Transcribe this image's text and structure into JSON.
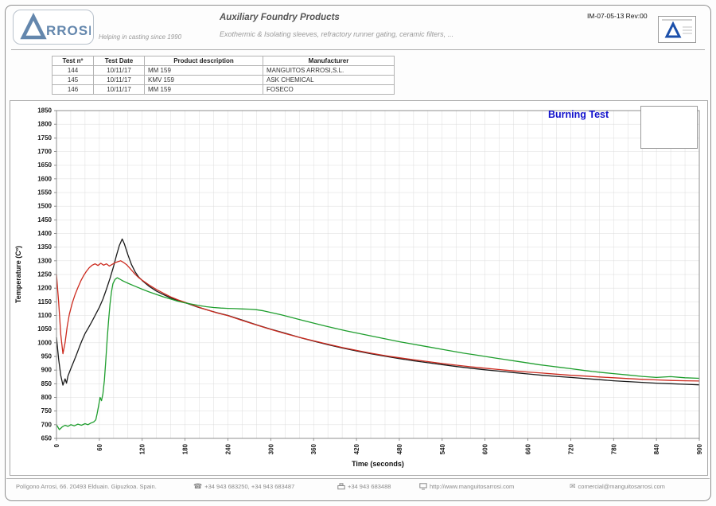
{
  "header": {
    "brand_name": "ARROSI",
    "logo_letters": "RROSI",
    "tagline": "Helping in casting since 1990",
    "title": "Auxiliary Foundry Products",
    "subtitle": "Exothermic & Isolating sleeves, refractory runner gating, ceramic filters, ...",
    "doc_code": "IM-07-05-13 Rev:00"
  },
  "test_table": {
    "headers": [
      "Test nº",
      "Test Date",
      "Product description",
      "Manufacturer"
    ],
    "rows": [
      [
        "144",
        "10/11/17",
        "MM 159",
        "MANGUITOS ARROSI,S.L."
      ],
      [
        "145",
        "10/11/17",
        "KMV 159",
        "ASK CHEMICAL"
      ],
      [
        "146",
        "10/11/17",
        "MM 159",
        "FOSECO"
      ]
    ]
  },
  "chart_data": {
    "type": "line",
    "title": "Burning Test",
    "title_color": "#1212cc",
    "xlabel": "Time (seconds)",
    "ylabel": "Temperature (Cº)",
    "xlim": [
      0,
      900
    ],
    "ylim": [
      650,
      1850
    ],
    "x_tick_step": 60,
    "y_tick_step": 50,
    "x_grid_step": 20,
    "grid": true,
    "legend": {
      "position": "top-right",
      "entries": []
    },
    "series": [
      {
        "name": "black",
        "color": "#1a1a1a",
        "points": [
          [
            0,
            1020
          ],
          [
            3,
            940
          ],
          [
            6,
            880
          ],
          [
            9,
            845
          ],
          [
            12,
            868
          ],
          [
            14,
            852
          ],
          [
            16,
            878
          ],
          [
            20,
            905
          ],
          [
            24,
            930
          ],
          [
            28,
            956
          ],
          [
            32,
            984
          ],
          [
            36,
            1010
          ],
          [
            40,
            1034
          ],
          [
            45,
            1056
          ],
          [
            50,
            1080
          ],
          [
            55,
            1105
          ],
          [
            60,
            1130
          ],
          [
            65,
            1160
          ],
          [
            70,
            1196
          ],
          [
            75,
            1236
          ],
          [
            80,
            1280
          ],
          [
            84,
            1320
          ],
          [
            88,
            1356
          ],
          [
            92,
            1380
          ],
          [
            95,
            1362
          ],
          [
            100,
            1322
          ],
          [
            105,
            1286
          ],
          [
            110,
            1260
          ],
          [
            115,
            1241
          ],
          [
            120,
            1228
          ],
          [
            130,
            1206
          ],
          [
            140,
            1189
          ],
          [
            150,
            1176
          ],
          [
            160,
            1164
          ],
          [
            170,
            1155
          ],
          [
            180,
            1147
          ],
          [
            195,
            1133
          ],
          [
            210,
            1121
          ],
          [
            225,
            1110
          ],
          [
            240,
            1100
          ],
          [
            260,
            1083
          ],
          [
            280,
            1066
          ],
          [
            300,
            1050
          ],
          [
            320,
            1035
          ],
          [
            340,
            1020
          ],
          [
            360,
            1006
          ],
          [
            380,
            993
          ],
          [
            400,
            981
          ],
          [
            420,
            970
          ],
          [
            440,
            960
          ],
          [
            460,
            951
          ],
          [
            480,
            942
          ],
          [
            500,
            934
          ],
          [
            520,
            927
          ],
          [
            540,
            920
          ],
          [
            560,
            913
          ],
          [
            580,
            907
          ],
          [
            600,
            901
          ],
          [
            620,
            896
          ],
          [
            640,
            891
          ],
          [
            660,
            886
          ],
          [
            680,
            881
          ],
          [
            700,
            877
          ],
          [
            720,
            873
          ],
          [
            740,
            869
          ],
          [
            760,
            865
          ],
          [
            780,
            861
          ],
          [
            800,
            858
          ],
          [
            820,
            855
          ],
          [
            840,
            852
          ],
          [
            860,
            850
          ],
          [
            880,
            848
          ],
          [
            900,
            846
          ]
        ]
      },
      {
        "name": "red",
        "color": "#cc2a1e",
        "points": [
          [
            0,
            1250
          ],
          [
            3,
            1150
          ],
          [
            6,
            1030
          ],
          [
            9,
            960
          ],
          [
            12,
            1000
          ],
          [
            15,
            1060
          ],
          [
            18,
            1105
          ],
          [
            22,
            1145
          ],
          [
            26,
            1176
          ],
          [
            30,
            1202
          ],
          [
            34,
            1226
          ],
          [
            38,
            1246
          ],
          [
            42,
            1262
          ],
          [
            46,
            1275
          ],
          [
            50,
            1284
          ],
          [
            54,
            1289
          ],
          [
            58,
            1283
          ],
          [
            62,
            1291
          ],
          [
            66,
            1284
          ],
          [
            70,
            1289
          ],
          [
            74,
            1281
          ],
          [
            78,
            1287
          ],
          [
            82,
            1293
          ],
          [
            86,
            1297
          ],
          [
            90,
            1300
          ],
          [
            94,
            1294
          ],
          [
            98,
            1286
          ],
          [
            102,
            1275
          ],
          [
            106,
            1263
          ],
          [
            110,
            1251
          ],
          [
            115,
            1239
          ],
          [
            120,
            1229
          ],
          [
            130,
            1211
          ],
          [
            140,
            1195
          ],
          [
            150,
            1181
          ],
          [
            160,
            1168
          ],
          [
            170,
            1157
          ],
          [
            180,
            1148
          ],
          [
            195,
            1134
          ],
          [
            210,
            1121
          ],
          [
            225,
            1109
          ],
          [
            240,
            1099
          ],
          [
            260,
            1082
          ],
          [
            280,
            1065
          ],
          [
            300,
            1049
          ],
          [
            320,
            1034
          ],
          [
            340,
            1020
          ],
          [
            360,
            1007
          ],
          [
            380,
            995
          ],
          [
            400,
            983
          ],
          [
            420,
            972
          ],
          [
            440,
            962
          ],
          [
            460,
            953
          ],
          [
            480,
            945
          ],
          [
            500,
            938
          ],
          [
            520,
            931
          ],
          [
            540,
            924
          ],
          [
            560,
            918
          ],
          [
            580,
            912
          ],
          [
            600,
            907
          ],
          [
            620,
            902
          ],
          [
            640,
            897
          ],
          [
            660,
            893
          ],
          [
            680,
            889
          ],
          [
            700,
            885
          ],
          [
            720,
            881
          ],
          [
            740,
            878
          ],
          [
            760,
            875
          ],
          [
            780,
            872
          ],
          [
            800,
            869
          ],
          [
            820,
            866
          ],
          [
            840,
            864
          ],
          [
            860,
            862
          ],
          [
            880,
            861
          ],
          [
            900,
            860
          ]
        ]
      },
      {
        "name": "green",
        "color": "#1f9e2e",
        "points": [
          [
            0,
            700
          ],
          [
            4,
            682
          ],
          [
            8,
            692
          ],
          [
            12,
            698
          ],
          [
            16,
            694
          ],
          [
            20,
            700
          ],
          [
            25,
            696
          ],
          [
            30,
            702
          ],
          [
            35,
            698
          ],
          [
            40,
            704
          ],
          [
            44,
            700
          ],
          [
            48,
            706
          ],
          [
            52,
            710
          ],
          [
            55,
            718
          ],
          [
            57,
            742
          ],
          [
            59,
            770
          ],
          [
            61,
            800
          ],
          [
            63,
            788
          ],
          [
            65,
            814
          ],
          [
            67,
            862
          ],
          [
            69,
            932
          ],
          [
            71,
            1012
          ],
          [
            73,
            1082
          ],
          [
            75,
            1142
          ],
          [
            77,
            1186
          ],
          [
            79,
            1216
          ],
          [
            82,
            1232
          ],
          [
            85,
            1238
          ],
          [
            88,
            1234
          ],
          [
            92,
            1228
          ],
          [
            96,
            1223
          ],
          [
            100,
            1218
          ],
          [
            110,
            1207
          ],
          [
            120,
            1196
          ],
          [
            130,
            1186
          ],
          [
            140,
            1177
          ],
          [
            150,
            1168
          ],
          [
            160,
            1160
          ],
          [
            170,
            1152
          ],
          [
            180,
            1146
          ],
          [
            190,
            1141
          ],
          [
            200,
            1136
          ],
          [
            210,
            1132
          ],
          [
            220,
            1129
          ],
          [
            230,
            1127
          ],
          [
            240,
            1126
          ],
          [
            250,
            1125
          ],
          [
            260,
            1124
          ],
          [
            270,
            1123
          ],
          [
            280,
            1121
          ],
          [
            290,
            1117
          ],
          [
            300,
            1111
          ],
          [
            315,
            1102
          ],
          [
            330,
            1092
          ],
          [
            345,
            1082
          ],
          [
            360,
            1072
          ],
          [
            375,
            1062
          ],
          [
            390,
            1053
          ],
          [
            405,
            1044
          ],
          [
            420,
            1036
          ],
          [
            435,
            1028
          ],
          [
            450,
            1020
          ],
          [
            465,
            1012
          ],
          [
            480,
            1004
          ],
          [
            495,
            997
          ],
          [
            510,
            990
          ],
          [
            525,
            983
          ],
          [
            540,
            976
          ],
          [
            555,
            969
          ],
          [
            570,
            962
          ],
          [
            585,
            956
          ],
          [
            600,
            950
          ],
          [
            615,
            944
          ],
          [
            630,
            938
          ],
          [
            645,
            932
          ],
          [
            660,
            926
          ],
          [
            675,
            920
          ],
          [
            690,
            915
          ],
          [
            705,
            910
          ],
          [
            720,
            905
          ],
          [
            735,
            900
          ],
          [
            750,
            895
          ],
          [
            765,
            891
          ],
          [
            780,
            887
          ],
          [
            800,
            882
          ],
          [
            820,
            877
          ],
          [
            840,
            873
          ],
          [
            860,
            876
          ],
          [
            880,
            872
          ],
          [
            900,
            870
          ]
        ]
      }
    ]
  },
  "footer": {
    "address": "Polígono Arrosi, 66.   20493 Elduain. Gipuzkoa. Spain.",
    "phone": "+34 943 683250, +34 943 683487",
    "fax": "+34 943 683488",
    "web": "http://www.manguitosarrosi.com",
    "email": "comercial@manguitosarrosi.com"
  }
}
